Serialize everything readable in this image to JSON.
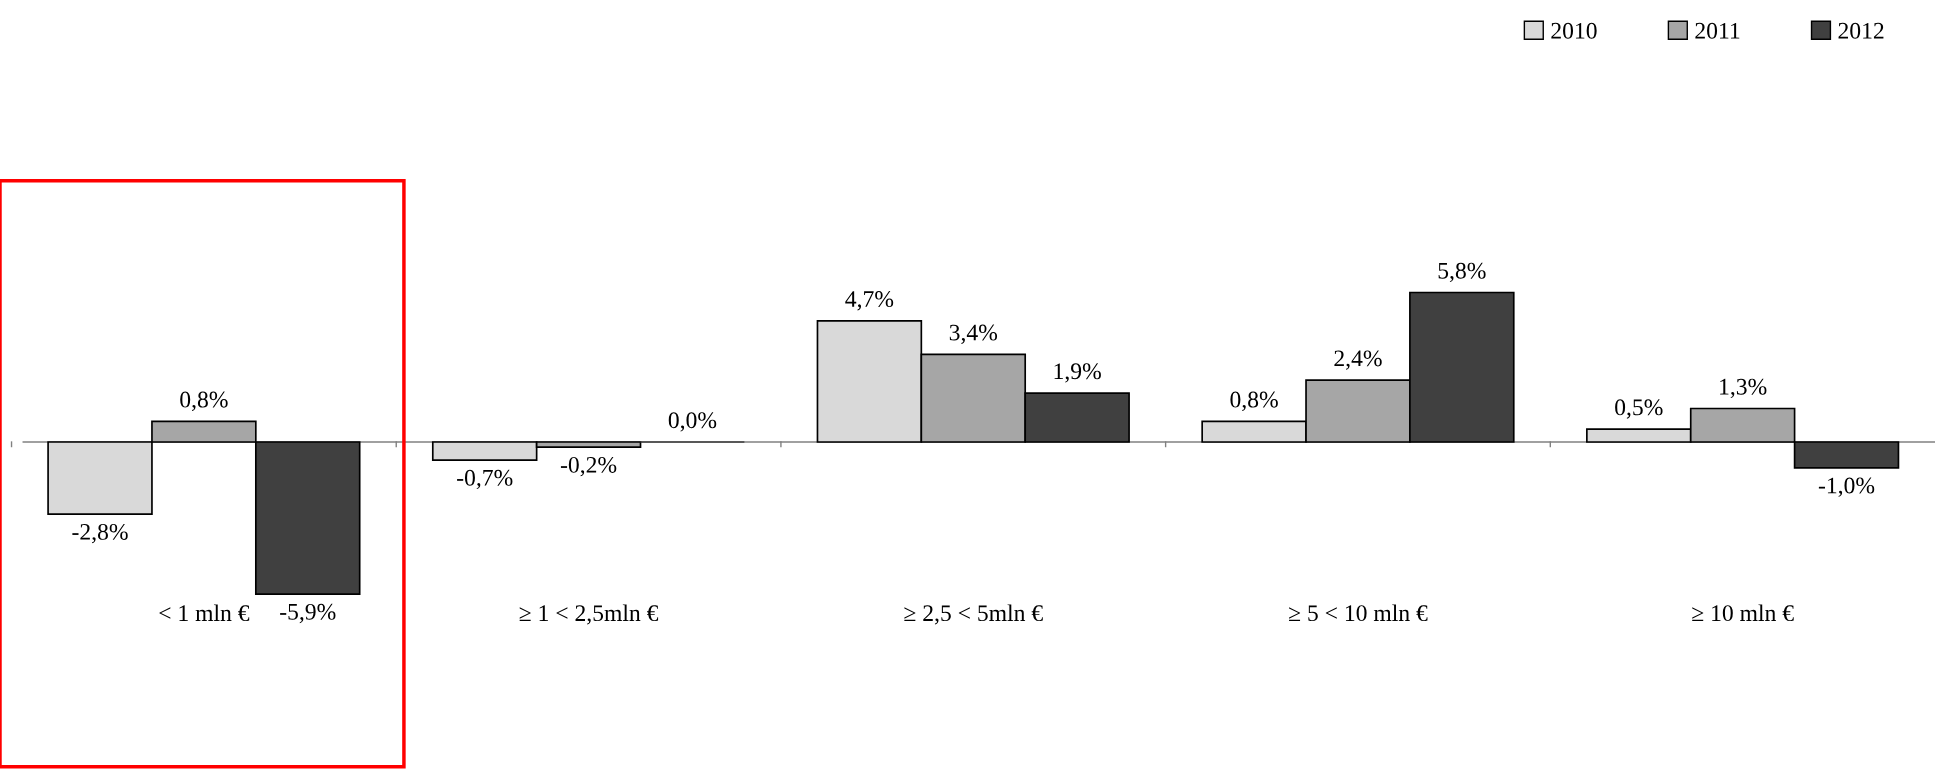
{
  "chart_data": {
    "type": "bar",
    "categories": [
      "< 1 mln €",
      "≥ 1 < 2,5mln €",
      "≥ 2,5 < 5mln €",
      "≥ 5 < 10 mln €",
      "≥ 10 mln €"
    ],
    "series": [
      {
        "name": "2010",
        "color": "#d9d9d9",
        "values": [
          -2.8,
          -0.7,
          4.7,
          0.8,
          0.5
        ],
        "value_labels": [
          "-2,8%",
          "-0,7%",
          "4,7%",
          "0,8%",
          "0,5%"
        ]
      },
      {
        "name": "2011",
        "color": "#a6a6a6",
        "values": [
          0.8,
          -0.2,
          3.4,
          2.4,
          1.3
        ],
        "value_labels": [
          "0,8%",
          "-0,2%",
          "3,4%",
          "2,4%",
          "1,3%"
        ]
      },
      {
        "name": "2012",
        "color": "#404040",
        "values": [
          -5.9,
          0.0,
          1.9,
          5.8,
          -1.0
        ],
        "value_labels": [
          "-5,9%",
          "0,0%",
          "1,9%",
          "5,8%",
          "-1,0%"
        ]
      }
    ],
    "legend": "top right",
    "tick_labels": "x"
  }
}
